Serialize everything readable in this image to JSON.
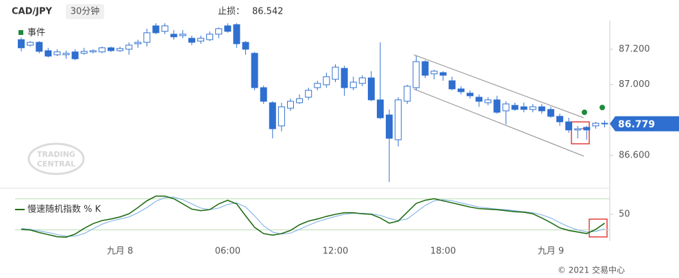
{
  "header": {
    "symbol": "CAD/JPY",
    "interval": "30分钟",
    "stop_loss_label": "止损：",
    "stop_loss": "86.542"
  },
  "legend": {
    "name": "事件",
    "color": "#1e8a3c"
  },
  "watermark": [
    "TRADING",
    "CENTRAL"
  ],
  "footer": "© 2021 交易中心",
  "last_price": {
    "label": "86.779",
    "value": 86.779,
    "color": "#2e6fd0"
  },
  "chart_data": [
    {
      "type": "candlestick",
      "color": "#2e6fd0",
      "ylim": [
        86.434,
        87.362
      ],
      "yticks": [
        {
          "value": 87.2,
          "label": "87.200"
        },
        {
          "value": 87.0,
          "label": "87.000"
        },
        {
          "value": 86.6,
          "label": "86.600"
        }
      ],
      "open": [
        87.254,
        87.223,
        87.239,
        87.192,
        87.169,
        87.169,
        87.185,
        87.177,
        87.185,
        87.185,
        87.208,
        87.192,
        87.2,
        87.231,
        87.239,
        87.332,
        87.301,
        87.285,
        87.277,
        87.262,
        87.246,
        87.254,
        87.285,
        87.332,
        87.339,
        87.239,
        87.177,
        86.983,
        86.898,
        86.767,
        86.867,
        86.898,
        86.929,
        86.983,
        86.999,
        87.03,
        87.092,
        86.983,
        87.007,
        87.038,
        86.914,
        86.829,
        86.689,
        86.906,
        86.983,
        87.13,
        87.061,
        87.068,
        87.022,
        86.976,
        86.952,
        86.929,
        86.898,
        86.914,
        86.852,
        86.883,
        86.875,
        86.86,
        86.875,
        86.86,
        86.821,
        86.79,
        86.744,
        86.759,
        86.767,
        86.782
      ],
      "high": [
        87.266,
        87.246,
        87.246,
        87.208,
        87.2,
        87.192,
        87.2,
        87.208,
        87.2,
        87.215,
        87.215,
        87.215,
        87.239,
        87.254,
        87.316,
        87.347,
        87.347,
        87.308,
        87.308,
        87.277,
        87.277,
        87.301,
        87.324,
        87.347,
        87.347,
        87.246,
        87.185,
        86.995,
        86.906,
        86.898,
        86.921,
        86.945,
        86.983,
        87.022,
        87.068,
        87.115,
        87.107,
        87.045,
        87.053,
        87.076,
        87.239,
        86.86,
        86.929,
        86.999,
        87.161,
        87.138,
        87.084,
        87.076,
        87.045,
        86.991,
        86.968,
        86.945,
        86.929,
        86.937,
        86.906,
        86.898,
        86.898,
        86.891,
        86.891,
        86.875,
        86.836,
        86.813,
        86.767,
        86.767,
        86.79,
        86.798
      ],
      "low": [
        87.188,
        87.215,
        87.177,
        87.154,
        87.161,
        87.146,
        87.138,
        87.169,
        87.177,
        87.177,
        87.185,
        87.185,
        87.169,
        87.208,
        87.215,
        87.285,
        87.285,
        87.254,
        87.262,
        87.223,
        87.231,
        87.246,
        87.262,
        87.293,
        87.208,
        87.169,
        86.968,
        86.891,
        86.697,
        86.736,
        86.852,
        86.891,
        86.914,
        86.968,
        86.983,
        87.014,
        86.937,
        86.968,
        86.991,
        86.906,
        86.805,
        86.45,
        86.651,
        86.891,
        86.968,
        87.038,
        87.03,
        87.022,
        86.968,
        86.945,
        86.921,
        86.875,
        86.883,
        86.836,
        86.775,
        86.852,
        86.844,
        86.844,
        86.836,
        86.813,
        86.767,
        86.728,
        86.697,
        86.689,
        86.751,
        86.759
      ],
      "close": [
        87.208,
        87.239,
        87.188,
        87.161,
        87.185,
        87.177,
        87.146,
        87.188,
        87.192,
        87.208,
        87.192,
        87.204,
        87.223,
        87.239,
        87.293,
        87.293,
        87.332,
        87.27,
        87.285,
        87.239,
        87.262,
        87.285,
        87.316,
        87.301,
        87.231,
        87.2,
        86.983,
        86.906,
        86.751,
        86.875,
        86.906,
        86.921,
        86.968,
        87.007,
        87.045,
        87.099,
        86.983,
        87.014,
        87.038,
        86.914,
        86.813,
        86.697,
        86.914,
        86.991,
        87.13,
        87.053,
        87.076,
        87.053,
        86.976,
        86.96,
        86.937,
        86.906,
        86.914,
        86.844,
        86.891,
        86.86,
        86.86,
        86.875,
        86.852,
        86.821,
        86.79,
        86.744,
        86.751,
        86.744,
        86.782,
        86.779
      ]
    },
    {
      "type": "line",
      "ylim": [
        0,
        100
      ],
      "yticks": [
        50
      ],
      "bands": [
        20,
        80
      ],
      "band_color": "#b9dbb1",
      "categories": [
        null,
        null,
        null,
        null,
        null,
        null,
        null,
        null,
        null,
        null,
        null,
        "九月 8",
        null,
        null,
        null,
        null,
        null,
        null,
        null,
        null,
        null,
        null,
        null,
        "06:00",
        null,
        null,
        null,
        null,
        null,
        null,
        null,
        null,
        null,
        null,
        null,
        "12:00",
        null,
        null,
        null,
        null,
        null,
        null,
        null,
        null,
        null,
        null,
        null,
        "18:00",
        null,
        null,
        null,
        null,
        null,
        null,
        null,
        null,
        null,
        null,
        null,
        "九月 9",
        null,
        null,
        null,
        null,
        null,
        null
      ],
      "series": [
        {
          "name": "慢速随机指数 % K",
          "color": "#1f6b12",
          "values": [
            21,
            20,
            15,
            11,
            7,
            6,
            12,
            23,
            32,
            38,
            41,
            45,
            51,
            63,
            76,
            85,
            85,
            80,
            70,
            60,
            57,
            59,
            70,
            77,
            70,
            47,
            25,
            13,
            10,
            13,
            19,
            30,
            37,
            41,
            46,
            50,
            53,
            53,
            51,
            50,
            43,
            33,
            37,
            54,
            71,
            77,
            80,
            76,
            72,
            68,
            64,
            61,
            60,
            59,
            57,
            55,
            54,
            51,
            43,
            34,
            24,
            19,
            16,
            13,
            21,
            33
          ]
        },
        {
          "color": "#7fb0e6",
          "values": [
            23,
            21,
            18,
            15,
            11,
            8,
            8,
            13,
            22,
            31,
            37,
            41,
            45,
            53,
            63,
            75,
            82,
            83,
            78,
            70,
            62,
            59,
            62,
            69,
            72,
            64,
            47,
            28,
            16,
            12,
            14,
            21,
            29,
            36,
            41,
            46,
            50,
            52,
            52,
            51,
            48,
            42,
            38,
            41,
            54,
            67,
            76,
            78,
            76,
            72,
            68,
            64,
            62,
            60,
            59,
            57,
            55,
            53,
            49,
            43,
            34,
            26,
            20,
            16,
            17,
            22
          ]
        }
      ]
    }
  ]
}
